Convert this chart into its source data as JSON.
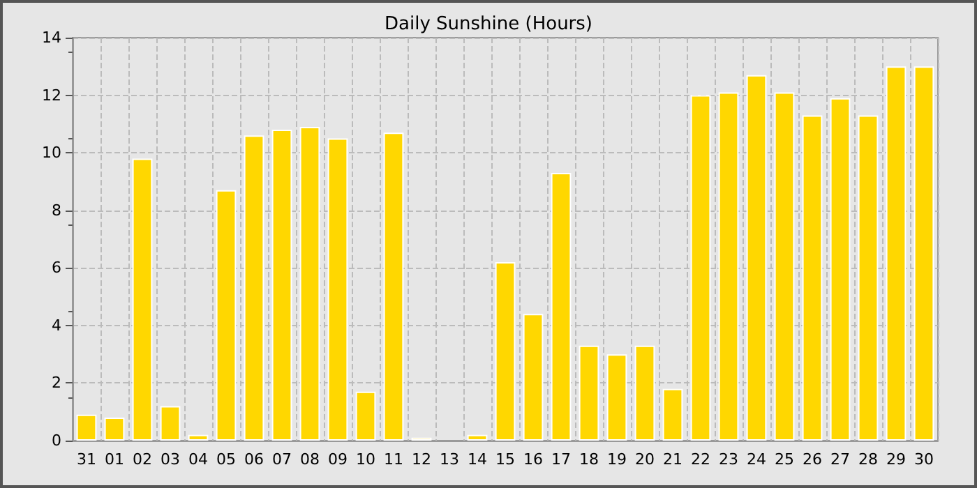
{
  "chart_data": {
    "type": "bar",
    "title": "Daily Sunshine (Hours)",
    "categories": [
      "31",
      "01",
      "02",
      "03",
      "04",
      "05",
      "06",
      "07",
      "08",
      "09",
      "10",
      "11",
      "12",
      "13",
      "14",
      "15",
      "16",
      "17",
      "18",
      "19",
      "20",
      "21",
      "22",
      "23",
      "24",
      "25",
      "26",
      "27",
      "28",
      "29",
      "30"
    ],
    "values": [
      0.9,
      0.8,
      9.8,
      1.2,
      0.2,
      8.7,
      10.6,
      10.8,
      10.9,
      10.5,
      1.7,
      10.7,
      0.1,
      null,
      0.2,
      6.2,
      4.4,
      9.3,
      3.3,
      3.0,
      3.3,
      1.8,
      12.0,
      12.1,
      12.7,
      12.1,
      11.3,
      11.9,
      11.3,
      13.0,
      13.0
    ],
    "color": "#ffd700",
    "ylim": [
      0,
      14
    ],
    "yticks": [
      0,
      2,
      4,
      6,
      8,
      10,
      12,
      14
    ],
    "grid": true
  }
}
